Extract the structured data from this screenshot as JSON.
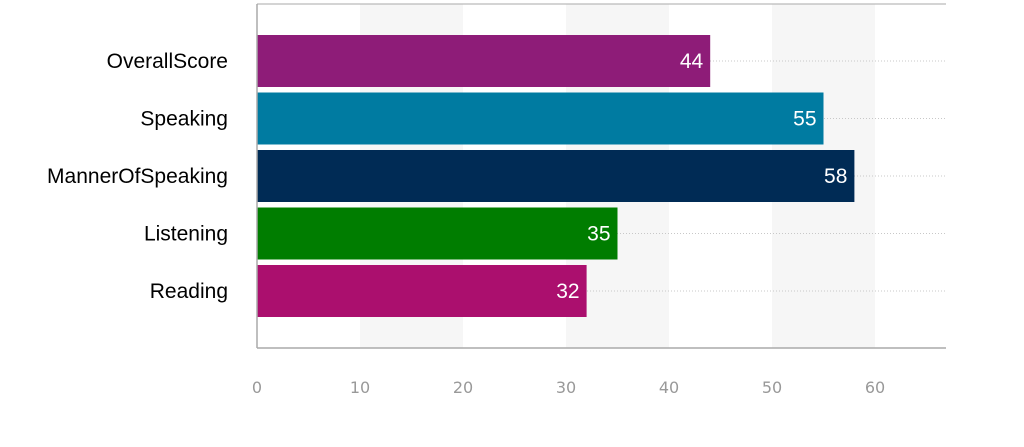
{
  "chart_data": {
    "type": "bar",
    "orientation": "horizontal",
    "categories": [
      "OverallScore",
      "Speaking",
      "MannerOfSpeaking",
      "Listening",
      "Reading"
    ],
    "values": [
      44,
      55,
      58,
      35,
      32
    ],
    "colors": [
      "#8e1c78",
      "#007ba1",
      "#002b55",
      "#007d00",
      "#ab0f6e"
    ],
    "xlim": [
      0,
      67
    ],
    "xticks": [
      0,
      10,
      20,
      30,
      40,
      50,
      60
    ],
    "grid": true,
    "data_labels": true,
    "legend": "none"
  }
}
